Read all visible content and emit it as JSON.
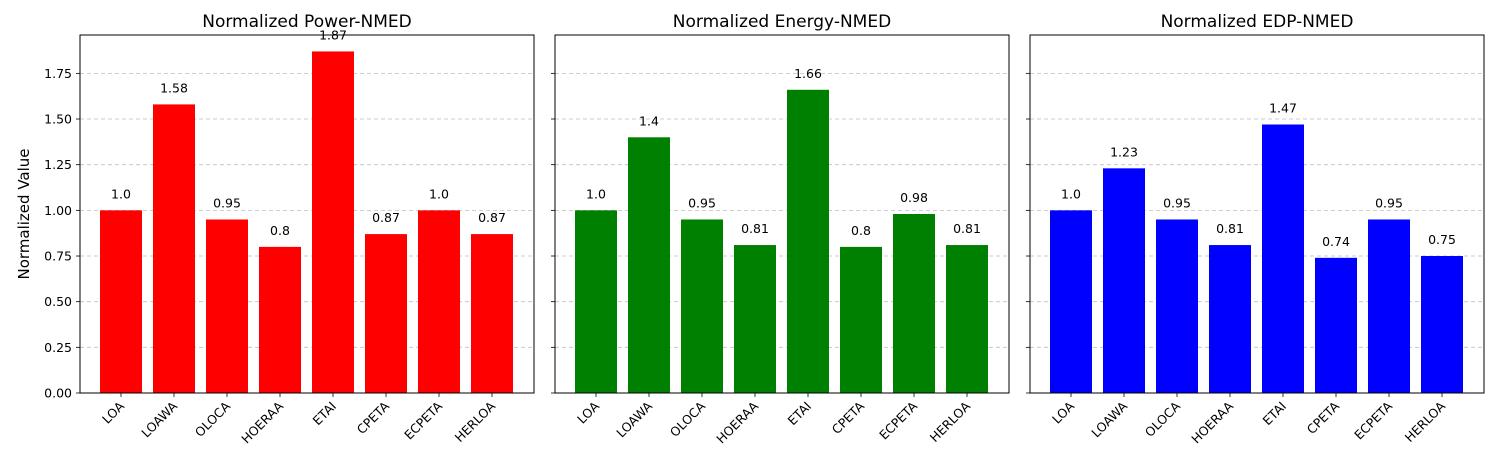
{
  "figure": {
    "ylabel": "Normalized Value"
  },
  "chart_data": [
    {
      "type": "bar",
      "title": "Normalized Power-NMED",
      "color": "#ff0000",
      "categories": [
        "LOA",
        "LOAWA",
        "OLOCA",
        "HOERAA",
        "ETAI",
        "CPETA",
        "ECPETA",
        "HERLOA"
      ],
      "values": [
        1.0,
        1.58,
        0.95,
        0.8,
        1.87,
        0.87,
        1.0,
        0.87
      ],
      "value_labels": [
        "1.0",
        "1.58",
        "0.95",
        "0.8",
        "1.87",
        "0.87",
        "1.0",
        "0.87"
      ],
      "xlabel": "",
      "ylabel": "Normalized Value",
      "ylim": [
        0,
        1.96
      ],
      "yticks": [
        "0.00",
        "0.25",
        "0.50",
        "0.75",
        "1.00",
        "1.25",
        "1.50",
        "1.75"
      ],
      "grid": "y-dashed"
    },
    {
      "type": "bar",
      "title": "Normalized Energy-NMED",
      "color": "#008000",
      "categories": [
        "LOA",
        "LOAWA",
        "OLOCA",
        "HOERAA",
        "ETAI",
        "CPETA",
        "ECPETA",
        "HERLOA"
      ],
      "values": [
        1.0,
        1.4,
        0.95,
        0.81,
        1.66,
        0.8,
        0.98,
        0.81
      ],
      "value_labels": [
        "1.0",
        "1.4",
        "0.95",
        "0.81",
        "1.66",
        "0.8",
        "0.98",
        "0.81"
      ],
      "xlabel": "",
      "ylabel": "",
      "ylim": [
        0,
        1.96
      ],
      "yticks": [],
      "grid": "y-dashed"
    },
    {
      "type": "bar",
      "title": "Normalized EDP-NMED",
      "color": "#0000ff",
      "categories": [
        "LOA",
        "LOAWA",
        "OLOCA",
        "HOERAA",
        "ETAI",
        "CPETA",
        "ECPETA",
        "HERLOA"
      ],
      "values": [
        1.0,
        1.23,
        0.95,
        0.81,
        1.47,
        0.74,
        0.95,
        0.75
      ],
      "value_labels": [
        "1.0",
        "1.23",
        "0.95",
        "0.81",
        "1.47",
        "0.74",
        "0.95",
        "0.75"
      ],
      "xlabel": "",
      "ylabel": "",
      "ylim": [
        0,
        1.96
      ],
      "yticks": [],
      "grid": "y-dashed"
    }
  ]
}
